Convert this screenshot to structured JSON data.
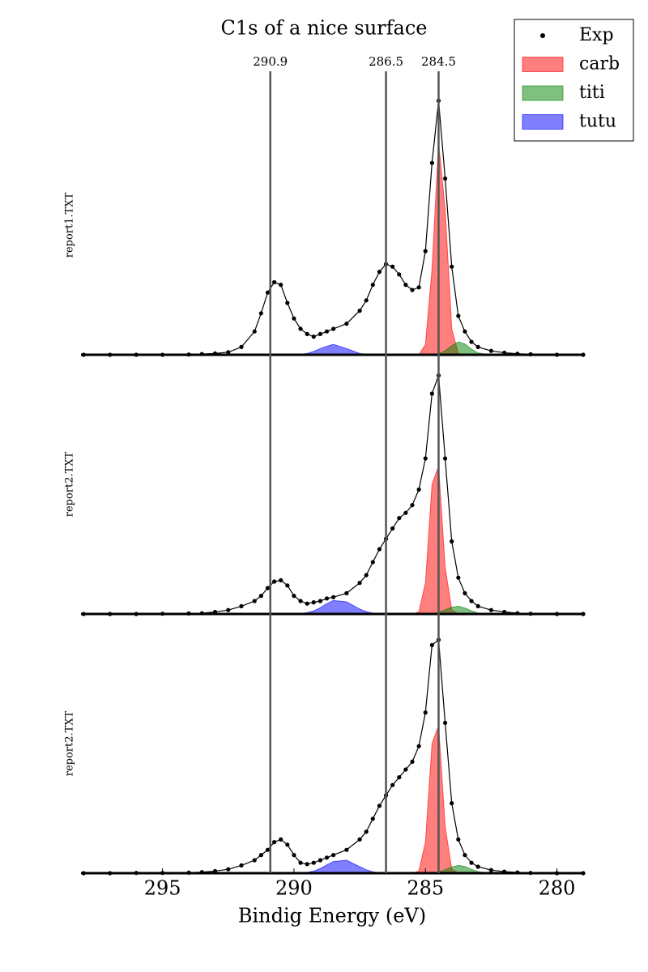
{
  "chart_data": [
    {
      "type": "line",
      "title": "C1s of a nice surface",
      "ylabel": "report1.TXT",
      "legend": "upper right",
      "vlines": [
        290.9,
        286.5,
        284.5
      ],
      "xlim": [
        298.1,
        279.0
      ],
      "ylim": [
        0,
        1
      ],
      "x": [
        298,
        297,
        296,
        295,
        294,
        293.5,
        293,
        292.5,
        292,
        291.5,
        291.25,
        291,
        290.75,
        290.5,
        290.25,
        290,
        289.75,
        289.5,
        289.25,
        289,
        288.75,
        288.5,
        288,
        287.5,
        287.25,
        287,
        286.75,
        286.5,
        286.25,
        286,
        285.75,
        285.5,
        285.25,
        285,
        284.75,
        284.5,
        284.25,
        284,
        283.75,
        283.5,
        283.25,
        283,
        282.5,
        282,
        281.5,
        281,
        280,
        279
      ],
      "series": [
        {
          "name": "Exp",
          "color": "#000000",
          "mark": "dots",
          "values": [
            0,
            0,
            0,
            0,
            0.001,
            0.003,
            0.005,
            0.01,
            0.03,
            0.09,
            0.16,
            0.24,
            0.28,
            0.27,
            0.2,
            0.14,
            0.1,
            0.08,
            0.07,
            0.08,
            0.09,
            0.1,
            0.12,
            0.17,
            0.21,
            0.27,
            0.32,
            0.35,
            0.34,
            0.31,
            0.27,
            0.25,
            0.26,
            0.4,
            0.74,
            0.98,
            0.68,
            0.34,
            0.15,
            0.09,
            0.05,
            0.03,
            0.015,
            0.008,
            0.004,
            0.002,
            0,
            0
          ]
        },
        {
          "name": "carb",
          "color": "#ff0000",
          "mark": "area",
          "values": [
            0,
            0,
            0,
            0,
            0,
            0,
            0,
            0,
            0,
            0,
            0,
            0,
            0,
            0,
            0,
            0,
            0,
            0,
            0,
            0,
            0,
            0,
            0,
            0,
            0,
            0,
            0,
            0,
            0,
            0,
            0,
            0,
            0,
            0.04,
            0.33,
            0.82,
            0.56,
            0.1,
            0.005,
            0,
            0,
            0,
            0,
            0,
            0,
            0,
            0,
            0
          ]
        },
        {
          "name": "titi",
          "color": "#008000",
          "mark": "area",
          "values": [
            0,
            0,
            0,
            0,
            0,
            0,
            0,
            0,
            0,
            0,
            0,
            0,
            0,
            0,
            0,
            0,
            0,
            0,
            0,
            0,
            0,
            0,
            0,
            0,
            0,
            0,
            0,
            0,
            0,
            0,
            0,
            0,
            0,
            0,
            0,
            0.003,
            0.015,
            0.035,
            0.05,
            0.042,
            0.022,
            0.007,
            0,
            0,
            0,
            0,
            0,
            0
          ]
        },
        {
          "name": "tutu",
          "color": "#0000ff",
          "mark": "area",
          "values": [
            0,
            0,
            0,
            0,
            0,
            0,
            0,
            0,
            0,
            0,
            0,
            0,
            0,
            0,
            0,
            0.001,
            0.002,
            0.005,
            0.013,
            0.024,
            0.033,
            0.04,
            0.024,
            0.005,
            0.002,
            0.001,
            0,
            0,
            0,
            0,
            0,
            0,
            0,
            0,
            0,
            0,
            0,
            0,
            0,
            0,
            0,
            0,
            0,
            0,
            0,
            0,
            0,
            0
          ]
        }
      ]
    },
    {
      "type": "line",
      "ylabel": "report2.TXT",
      "xlim": [
        298.1,
        279.0
      ],
      "ylim": [
        0,
        1
      ],
      "x": [
        298,
        297,
        296,
        295,
        294,
        293.5,
        293,
        292.5,
        292,
        291.5,
        291.25,
        291,
        290.75,
        290.5,
        290.25,
        290,
        289.75,
        289.5,
        289.25,
        289,
        288.75,
        288.5,
        288,
        287.5,
        287.25,
        287,
        286.75,
        286.5,
        286.25,
        286,
        285.75,
        285.5,
        285.25,
        285,
        284.75,
        284.5,
        284.25,
        284,
        283.75,
        283.5,
        283.25,
        283,
        282.5,
        282,
        281.5,
        281,
        280,
        279
      ],
      "series": [
        {
          "name": "Exp",
          "color": "#000000",
          "mark": "dots",
          "values": [
            0,
            0,
            0,
            0.001,
            0.002,
            0.003,
            0.008,
            0.015,
            0.03,
            0.05,
            0.07,
            0.1,
            0.125,
            0.13,
            0.11,
            0.07,
            0.05,
            0.04,
            0.045,
            0.05,
            0.06,
            0.065,
            0.08,
            0.12,
            0.15,
            0.2,
            0.25,
            0.29,
            0.33,
            0.37,
            0.39,
            0.42,
            0.48,
            0.6,
            0.85,
            0.92,
            0.6,
            0.28,
            0.14,
            0.08,
            0.05,
            0.03,
            0.015,
            0.008,
            0.003,
            0.001,
            0,
            0
          ]
        },
        {
          "name": "carb",
          "color": "#ff0000",
          "mark": "area",
          "values": [
            0,
            0,
            0,
            0,
            0,
            0,
            0,
            0,
            0,
            0,
            0,
            0,
            0,
            0,
            0,
            0,
            0,
            0,
            0,
            0,
            0,
            0,
            0,
            0,
            0,
            0,
            0,
            0,
            0,
            0,
            0,
            0,
            0.008,
            0.12,
            0.5,
            0.57,
            0.18,
            0.016,
            0,
            0,
            0,
            0,
            0,
            0,
            0,
            0,
            0,
            0
          ]
        },
        {
          "name": "titi",
          "color": "#008000",
          "mark": "area",
          "values": [
            0,
            0,
            0,
            0,
            0,
            0,
            0,
            0,
            0,
            0,
            0,
            0,
            0,
            0,
            0,
            0,
            0,
            0,
            0,
            0,
            0,
            0,
            0,
            0,
            0,
            0,
            0,
            0,
            0,
            0,
            0,
            0,
            0,
            0,
            0,
            0.007,
            0.016,
            0.026,
            0.03,
            0.023,
            0.012,
            0.004,
            0,
            0,
            0,
            0,
            0,
            0
          ]
        },
        {
          "name": "tutu",
          "color": "#0000ff",
          "mark": "area",
          "values": [
            0,
            0,
            0,
            0,
            0,
            0,
            0,
            0,
            0,
            0,
            0,
            0,
            0,
            0,
            0,
            0,
            0.002,
            0.005,
            0.012,
            0.024,
            0.04,
            0.052,
            0.047,
            0.019,
            0.009,
            0.003,
            0.001,
            0,
            0,
            0,
            0,
            0,
            0,
            0,
            0,
            0,
            0,
            0,
            0,
            0,
            0,
            0,
            0,
            0,
            0,
            0,
            0,
            0
          ]
        }
      ]
    },
    {
      "type": "line",
      "ylabel": "report2.TXT",
      "xlabel": "Bindig Energy (eV)",
      "xlim": [
        298.1,
        279.0
      ],
      "ylim": [
        0,
        1
      ],
      "xticks": [
        295,
        290,
        285,
        280
      ],
      "x": [
        298,
        297,
        296,
        295,
        294,
        293.5,
        293,
        292.5,
        292,
        291.5,
        291.25,
        291,
        290.75,
        290.5,
        290.25,
        290,
        289.75,
        289.5,
        289.25,
        289,
        288.75,
        288.5,
        288,
        287.5,
        287.25,
        287,
        286.75,
        286.5,
        286.25,
        286,
        285.75,
        285.5,
        285.25,
        285,
        284.75,
        284.5,
        284.25,
        284,
        283.75,
        283.5,
        283.25,
        283,
        282.5,
        282,
        281.5,
        281,
        280,
        279
      ],
      "series": [
        {
          "name": "Exp",
          "color": "#000000",
          "mark": "dots",
          "values": [
            0,
            0,
            0.001,
            0.001,
            0.002,
            0.004,
            0.008,
            0.015,
            0.03,
            0.05,
            0.07,
            0.09,
            0.12,
            0.13,
            0.11,
            0.07,
            0.04,
            0.035,
            0.04,
            0.05,
            0.06,
            0.07,
            0.09,
            0.13,
            0.16,
            0.21,
            0.26,
            0.3,
            0.34,
            0.37,
            0.4,
            0.43,
            0.49,
            0.62,
            0.88,
            0.9,
            0.58,
            0.27,
            0.13,
            0.07,
            0.04,
            0.025,
            0.012,
            0.006,
            0.003,
            0.001,
            0,
            0
          ]
        },
        {
          "name": "carb",
          "color": "#ff0000",
          "mark": "area",
          "values": [
            0,
            0,
            0,
            0,
            0,
            0,
            0,
            0,
            0,
            0,
            0,
            0,
            0,
            0,
            0,
            0,
            0,
            0,
            0,
            0,
            0,
            0,
            0,
            0,
            0,
            0,
            0,
            0,
            0,
            0,
            0,
            0,
            0.008,
            0.12,
            0.5,
            0.57,
            0.18,
            0.016,
            0,
            0,
            0,
            0,
            0,
            0,
            0,
            0,
            0,
            0
          ]
        },
        {
          "name": "titi",
          "color": "#008000",
          "mark": "area",
          "values": [
            0,
            0,
            0,
            0,
            0,
            0,
            0,
            0,
            0,
            0,
            0,
            0,
            0,
            0,
            0,
            0,
            0,
            0,
            0,
            0,
            0,
            0,
            0,
            0,
            0,
            0,
            0,
            0,
            0,
            0,
            0,
            0,
            0,
            0,
            0,
            0.005,
            0.013,
            0.024,
            0.03,
            0.026,
            0.015,
            0.006,
            0,
            0,
            0,
            0,
            0,
            0
          ]
        },
        {
          "name": "tutu",
          "color": "#0000ff",
          "mark": "area",
          "values": [
            0,
            0,
            0,
            0,
            0,
            0,
            0,
            0,
            0,
            0,
            0,
            0,
            0,
            0,
            0,
            0,
            0,
            0.003,
            0.008,
            0.018,
            0.032,
            0.045,
            0.05,
            0.025,
            0.013,
            0.005,
            0.002,
            0,
            0,
            0,
            0,
            0,
            0,
            0,
            0,
            0,
            0,
            0,
            0,
            0,
            0,
            0,
            0,
            0,
            0,
            0,
            0,
            0
          ]
        }
      ]
    }
  ]
}
